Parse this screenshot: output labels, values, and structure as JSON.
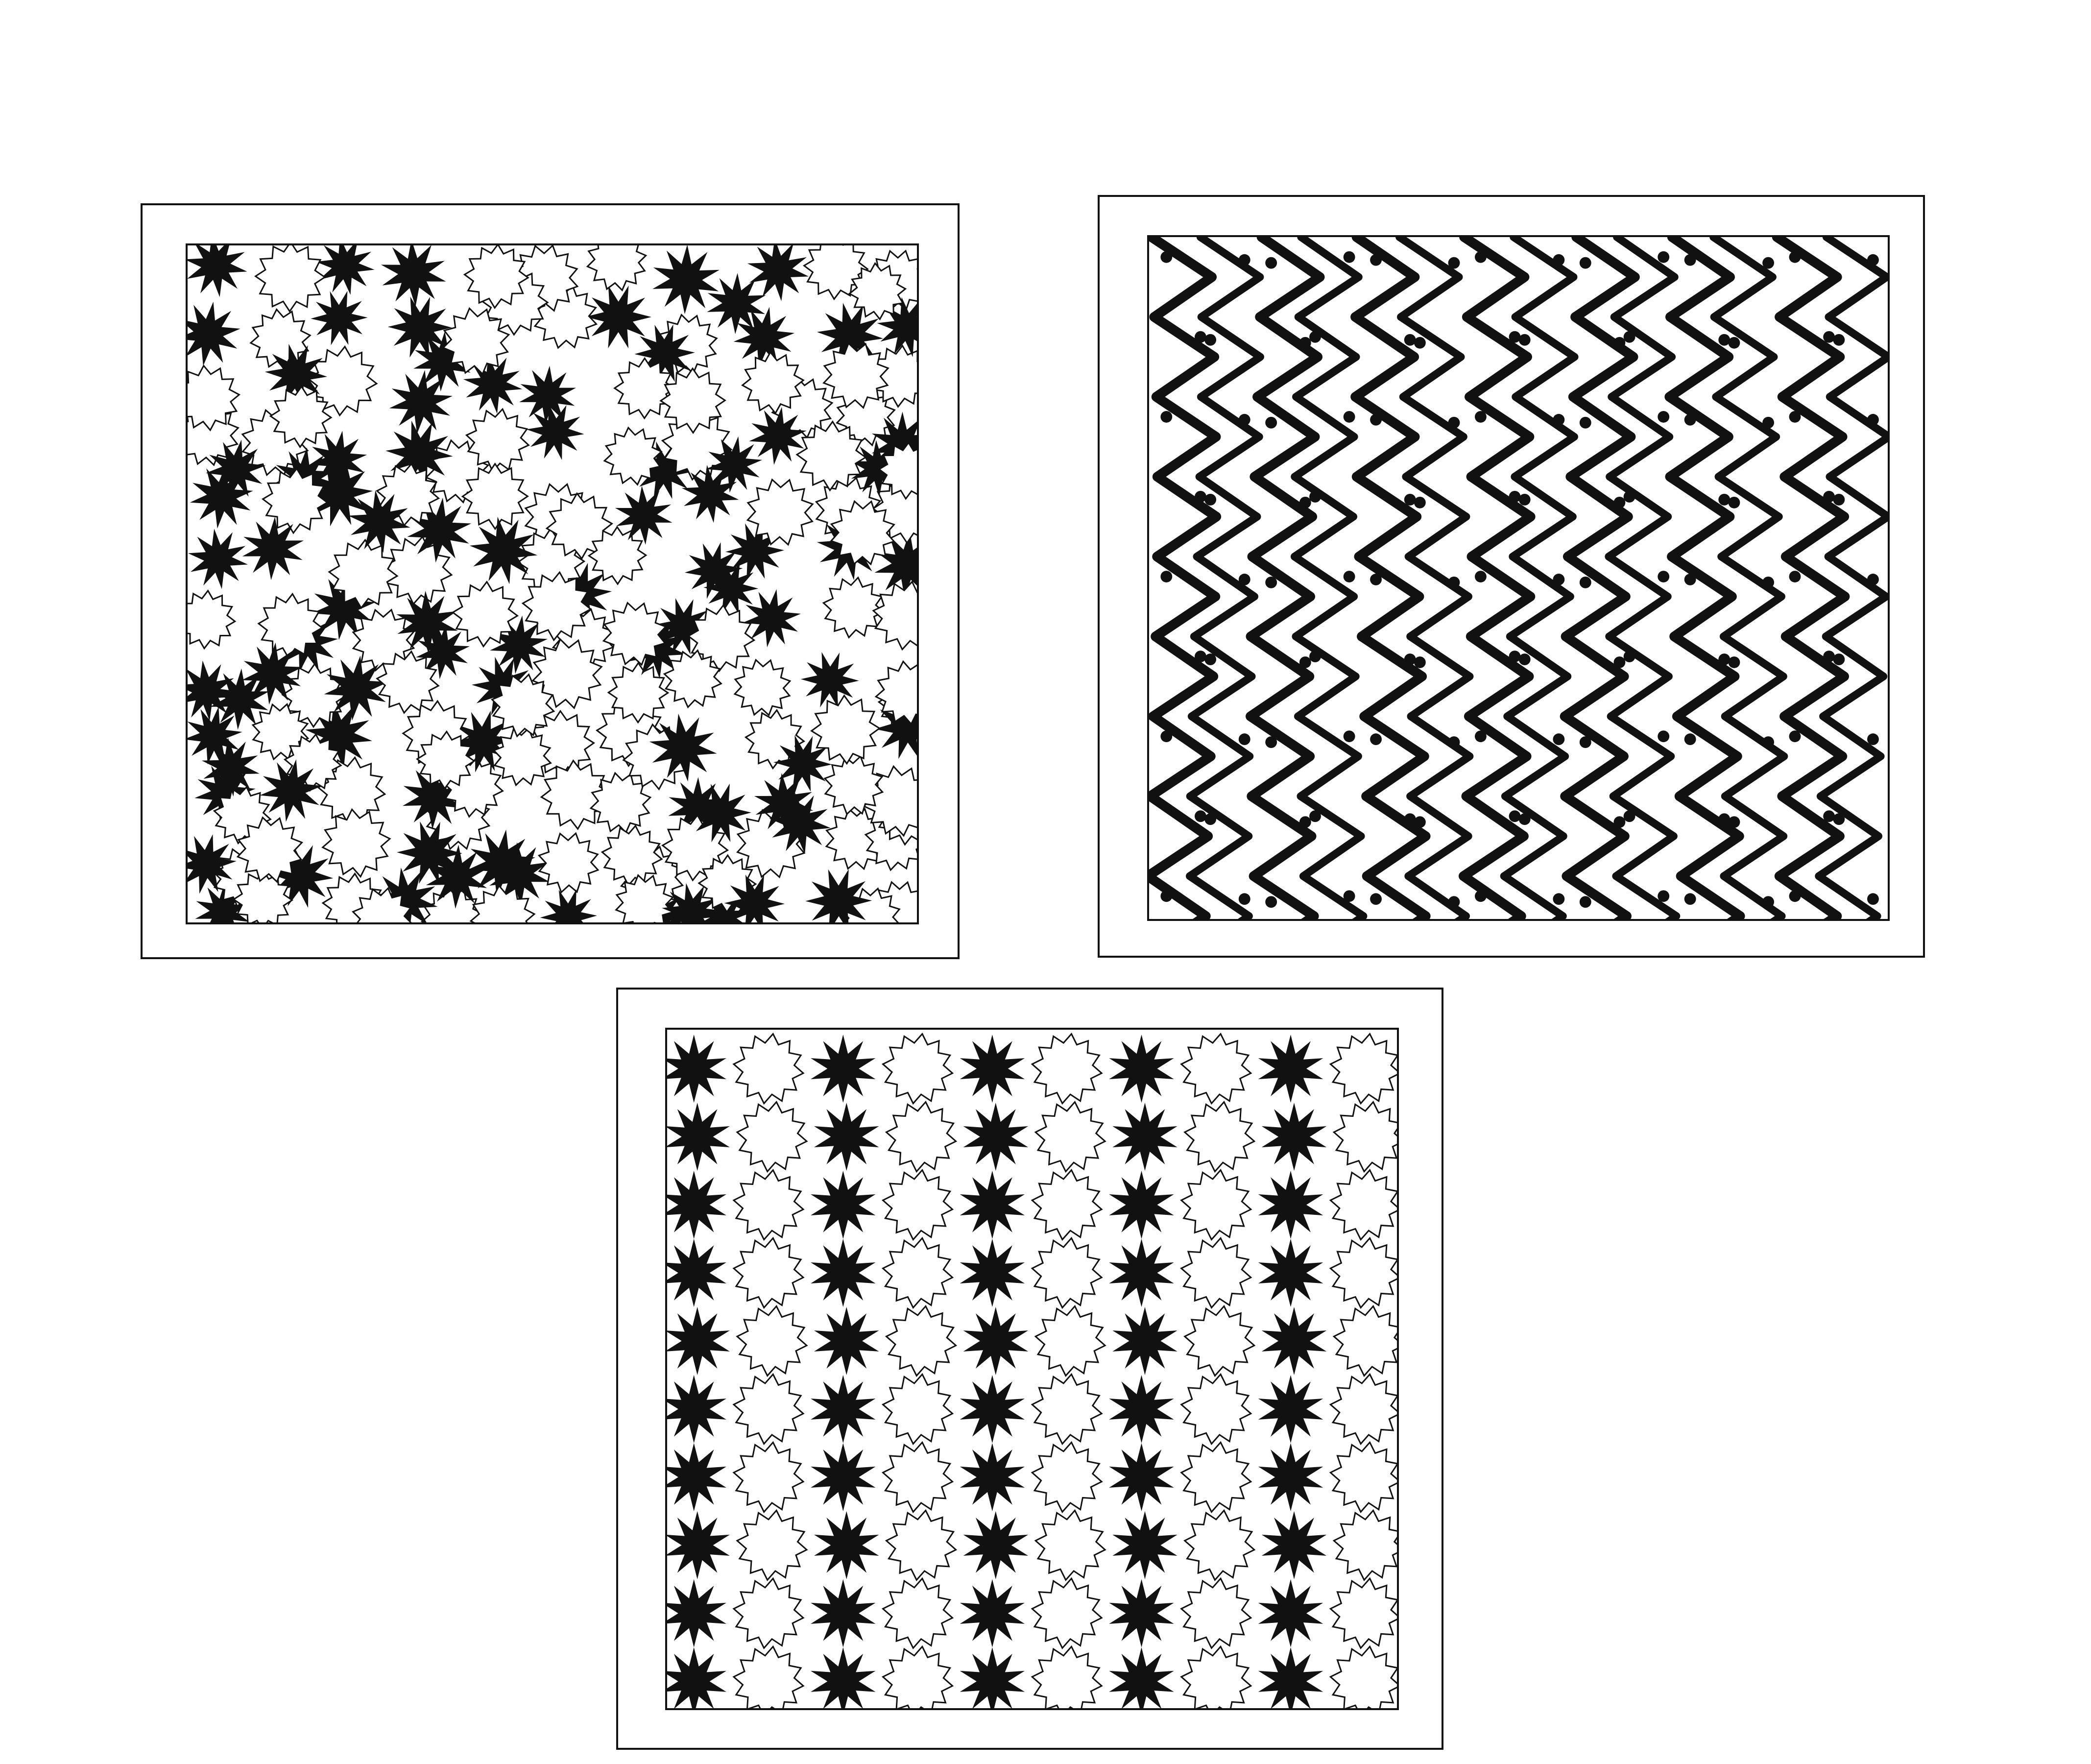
{
  "colors": {
    "ink": "#111111",
    "paper": "#ffffff"
  },
  "panels": [
    {
      "id": "scattered-stars",
      "pattern": "random-stars",
      "shapes": [
        "black-10-point-star",
        "white-outlined-12-point-star"
      ]
    },
    {
      "id": "zigzag-weave",
      "pattern": "interlocking-zigzag-lines"
    },
    {
      "id": "star-grid",
      "pattern": "grid-stars",
      "columns": 10,
      "rows": 10,
      "shapes": [
        "black-10-point-star",
        "white-outlined-12-point-star"
      ]
    }
  ]
}
